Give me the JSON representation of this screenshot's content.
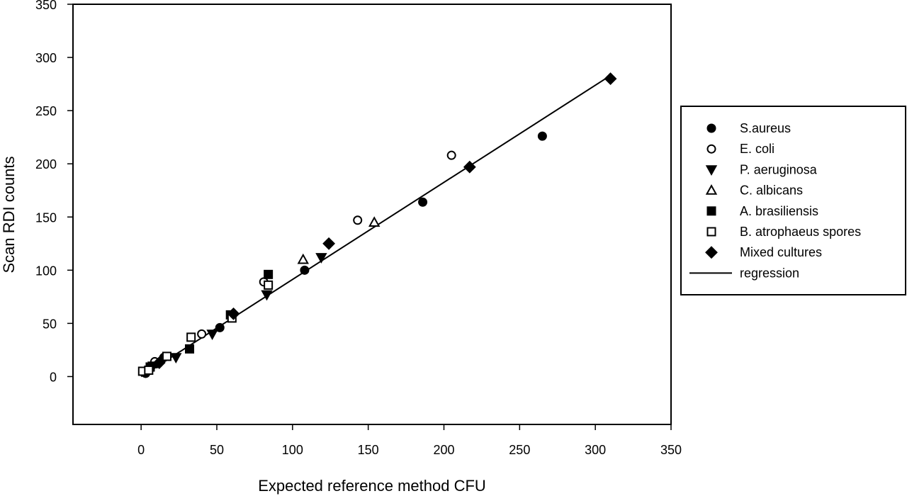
{
  "chart_data": {
    "type": "scatter",
    "title": "",
    "xlabel": "Expected reference method CFU",
    "ylabel": "Scan RDI counts",
    "xlim": [
      -45,
      350
    ],
    "ylim": [
      -45,
      350
    ],
    "x_ticks": [
      0,
      50,
      100,
      150,
      200,
      250,
      300,
      350
    ],
    "y_ticks": [
      0,
      50,
      100,
      150,
      200,
      250,
      300,
      350
    ],
    "grid": false,
    "legend_position": "right",
    "series": [
      {
        "name": "S.aureus",
        "marker": "circle-filled",
        "points": [
          [
            3,
            3
          ],
          [
            10,
            12
          ],
          [
            15,
            18
          ],
          [
            52,
            46
          ],
          [
            108,
            100
          ],
          [
            186,
            164
          ],
          [
            265,
            226
          ]
        ]
      },
      {
        "name": "E. coli",
        "marker": "circle-open",
        "points": [
          [
            4,
            5
          ],
          [
            9,
            14
          ],
          [
            40,
            40
          ],
          [
            81,
            89
          ],
          [
            143,
            147
          ],
          [
            205,
            208
          ]
        ]
      },
      {
        "name": "P. aeruginosa",
        "marker": "triangle-down-filled",
        "points": [
          [
            8,
            10
          ],
          [
            23,
            18
          ],
          [
            47,
            40
          ],
          [
            83,
            77
          ],
          [
            119,
            112
          ]
        ]
      },
      {
        "name": "C. albicans",
        "marker": "triangle-up-open",
        "points": [
          [
            107,
            110
          ],
          [
            154,
            145
          ]
        ]
      },
      {
        "name": "A. brasiliensis",
        "marker": "square-filled",
        "points": [
          [
            6,
            9
          ],
          [
            32,
            26
          ],
          [
            59,
            58
          ],
          [
            84,
            96
          ]
        ]
      },
      {
        "name": "B. atrophaeus spores",
        "marker": "square-open",
        "points": [
          [
            1,
            5
          ],
          [
            5,
            6
          ],
          [
            17,
            19
          ],
          [
            33,
            37
          ],
          [
            60,
            55
          ],
          [
            84,
            86
          ]
        ]
      },
      {
        "name": "Mixed cultures",
        "marker": "diamond-filled",
        "points": [
          [
            12,
            13
          ],
          [
            61,
            59
          ],
          [
            124,
            125
          ],
          [
            217,
            197
          ],
          [
            310,
            280
          ]
        ]
      }
    ],
    "regression": {
      "name": "regression",
      "points": [
        [
          0,
          0
        ],
        [
          310,
          283
        ]
      ]
    }
  },
  "colors": {
    "ink": "#000000",
    "background": "#ffffff"
  }
}
